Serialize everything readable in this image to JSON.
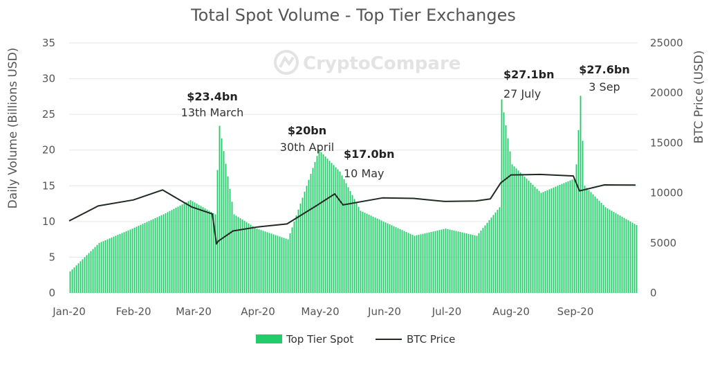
{
  "chart_data": {
    "type": "bar",
    "title": "Total Spot Volume - Top Tier Exchanges",
    "watermark": "CryptoCompare",
    "y_left": {
      "label": "Daily Volume (Billions USD)",
      "range": [
        0,
        35
      ],
      "ticks": [
        "0",
        "5",
        "10",
        "15",
        "20",
        "25",
        "30",
        "35"
      ]
    },
    "y_right": {
      "label": "BTC Price (USD)",
      "range": [
        0,
        25000
      ],
      "ticks": [
        "0",
        "5000",
        "10000",
        "15000",
        "20000",
        "25000"
      ]
    },
    "x_ticks": [
      "Jan-20",
      "Feb-20",
      "Mar-20",
      "Apr-20",
      "May-20",
      "Jun-20",
      "Jul-20",
      "Aug-20",
      "Sep-20"
    ],
    "x_start": "2020-01-01",
    "x_end": "2020-09-30",
    "legend": {
      "position": "bottom",
      "items": [
        "Top Tier Spot",
        "BTC Price"
      ]
    },
    "colors": {
      "bars": "#22cc6b",
      "line": "#1f2a22",
      "grid": "#e6e6e6"
    },
    "annotations": [
      {
        "value": "$23.4bn",
        "label": "13th March",
        "date": "2020-03-13"
      },
      {
        "value": "$20bn",
        "label": "30th April",
        "date": "2020-04-30"
      },
      {
        "value": "$17.0bn",
        "label": "10 May",
        "date": "2020-05-10"
      },
      {
        "value": "$27.1bn",
        "label": "27 July",
        "date": "2020-07-27"
      },
      {
        "value": "$27.6bn",
        "label": "3 Sep",
        "date": "2020-09-03"
      }
    ],
    "series": [
      {
        "name": "Top Tier Spot",
        "type": "bar",
        "axis": "left",
        "dates": [
          "2020-01-01",
          "2020-01-15",
          "2020-01-31",
          "2020-02-15",
          "2020-02-28",
          "2020-03-11",
          "2020-03-13",
          "2020-03-20",
          "2020-03-31",
          "2020-04-15",
          "2020-04-30",
          "2020-05-10",
          "2020-05-20",
          "2020-05-31",
          "2020-06-15",
          "2020-06-30",
          "2020-07-15",
          "2020-07-26",
          "2020-07-27",
          "2020-08-01",
          "2020-08-15",
          "2020-08-31",
          "2020-09-01",
          "2020-09-03",
          "2020-09-05",
          "2020-09-15",
          "2020-09-30"
        ],
        "values": [
          3,
          7,
          9,
          11,
          13,
          11,
          23.4,
          11,
          9,
          7.5,
          20,
          17,
          11.5,
          10,
          8,
          9,
          8,
          12,
          27.1,
          18,
          14,
          16,
          18,
          27.6,
          15,
          12,
          9.5
        ]
      },
      {
        "name": "BTC Price",
        "type": "line",
        "axis": "right",
        "dates": [
          "2020-01-01",
          "2020-01-15",
          "2020-02-01",
          "2020-02-15",
          "2020-02-29",
          "2020-03-10",
          "2020-03-12",
          "2020-03-13",
          "2020-03-20",
          "2020-04-01",
          "2020-04-15",
          "2020-04-29",
          "2020-05-08",
          "2020-05-12",
          "2020-05-31",
          "2020-06-15",
          "2020-06-30",
          "2020-07-15",
          "2020-07-22",
          "2020-07-27",
          "2020-08-01",
          "2020-08-15",
          "2020-08-31",
          "2020-09-03",
          "2020-09-15",
          "2020-09-30"
        ],
        "values": [
          7200,
          8700,
          9300,
          10300,
          8600,
          7900,
          4900,
          5200,
          6200,
          6600,
          6900,
          8700,
          9900,
          8800,
          9500,
          9450,
          9150,
          9200,
          9400,
          11000,
          11800,
          11850,
          11700,
          10200,
          10800,
          10780
        ]
      }
    ]
  }
}
